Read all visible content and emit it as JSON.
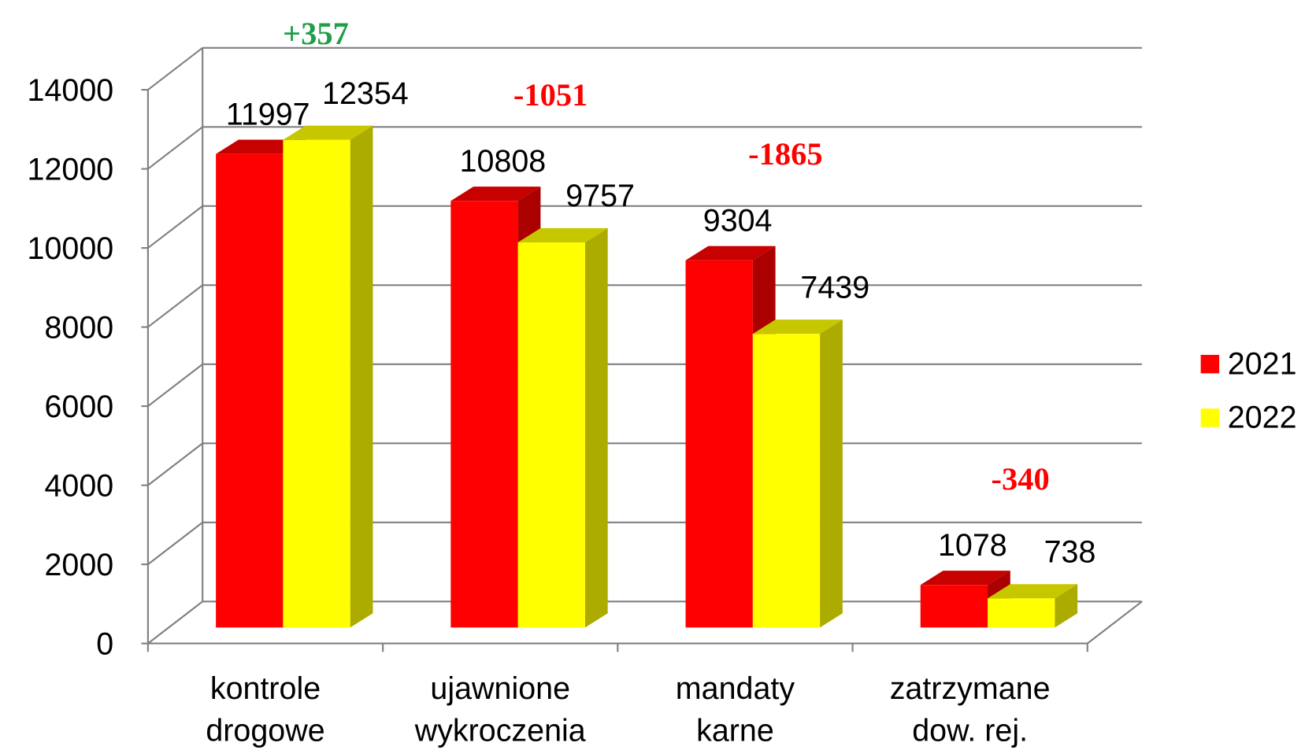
{
  "chart_data": {
    "type": "bar3d",
    "categories": [
      [
        "kontrole",
        "drogowe"
      ],
      [
        "ujawnione",
        "wykroczenia"
      ],
      [
        "mandaty",
        "karne"
      ],
      [
        "zatrzymane",
        "dow. rej."
      ]
    ],
    "series": [
      {
        "name": "2021",
        "color": "#ff0000",
        "values": [
          11997,
          10808,
          9304,
          1078
        ]
      },
      {
        "name": "2022",
        "color": "#ffff00",
        "values": [
          12354,
          9757,
          7439,
          738
        ]
      }
    ],
    "annotations": [
      {
        "text": "+357",
        "color": "#1e9e4a"
      },
      {
        "text": "-1051",
        "color": "#ff0000"
      },
      {
        "text": "-1865",
        "color": "#ff0000"
      },
      {
        "text": "-340",
        "color": "#ff0000"
      }
    ],
    "ylim": [
      0,
      14000
    ],
    "yticks": [
      0,
      2000,
      4000,
      6000,
      8000,
      10000,
      12000,
      14000
    ],
    "grid": true,
    "legend": "right"
  }
}
